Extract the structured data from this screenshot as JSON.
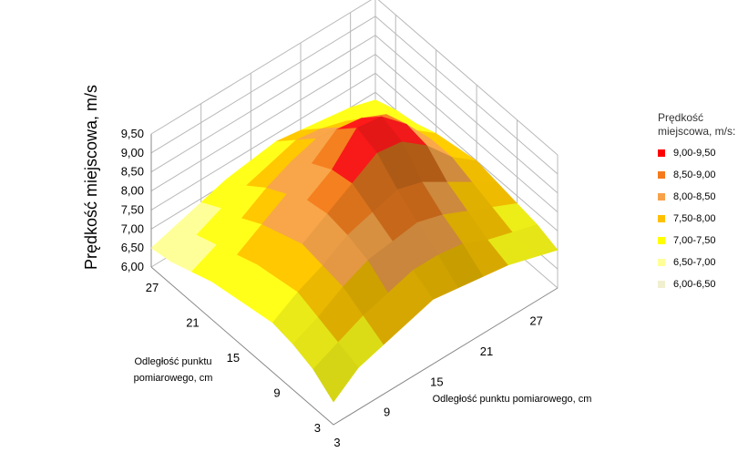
{
  "chart_data": {
    "type": "surface",
    "z_title": "Prędkość miejscowa, m/s",
    "x_title": "Odległość punktu pomiarowego, cm",
    "y_title": "Odległość punktu pomiarowego, cm",
    "x_ticks": [
      "3",
      "9",
      "15",
      "21",
      "27"
    ],
    "y_ticks": [
      "3",
      "9",
      "15",
      "21",
      "27"
    ],
    "z_ticks": [
      "6,00",
      "6,50",
      "7,00",
      "7,50",
      "8,00",
      "8,50",
      "9,00",
      "9,50"
    ],
    "zlim": [
      6.0,
      9.5
    ],
    "x": [
      3,
      6,
      9,
      12,
      15,
      18,
      21,
      24,
      27,
      30
    ],
    "y": [
      3,
      6,
      9,
      12,
      15,
      18,
      21,
      24,
      27,
      30
    ],
    "z": [
      [
        6.6,
        7.1,
        7.3,
        7.5,
        7.7,
        7.6,
        7.5,
        7.4,
        7.2,
        7.0
      ],
      [
        7.0,
        7.3,
        7.6,
        7.8,
        8.0,
        8.0,
        7.9,
        7.6,
        7.4,
        7.2
      ],
      [
        7.2,
        7.5,
        7.9,
        8.2,
        8.3,
        8.4,
        8.2,
        7.9,
        7.6,
        7.3
      ],
      [
        7.3,
        7.7,
        8.0,
        8.4,
        8.6,
        8.8,
        8.6,
        8.2,
        7.8,
        7.4
      ],
      [
        7.2,
        7.6,
        8.1,
        8.5,
        8.9,
        9.3,
        9.2,
        8.7,
        8.0,
        7.5
      ],
      [
        7.1,
        7.5,
        7.9,
        8.4,
        8.8,
        9.5,
        9.4,
        8.8,
        8.0,
        7.4
      ],
      [
        7.0,
        7.3,
        7.7,
        8.1,
        8.5,
        9.0,
        8.9,
        8.6,
        7.8,
        7.3
      ],
      [
        6.8,
        7.1,
        7.4,
        7.8,
        8.1,
        8.3,
        8.2,
        8.0,
        7.6,
        7.1
      ],
      [
        6.6,
        6.9,
        7.2,
        7.4,
        7.6,
        7.8,
        7.7,
        7.5,
        7.2,
        7.0
      ],
      [
        6.5,
        6.7,
        6.9,
        7.1,
        7.2,
        7.3,
        7.2,
        7.1,
        7.0,
        6.8
      ]
    ],
    "legend_title": "Prędkość miejscowa, m/s:",
    "legend": [
      {
        "label": "9,00-9,50",
        "color": "#ff0000"
      },
      {
        "label": "8,50-9,00",
        "color": "#f57a1c"
      },
      {
        "label": "8,00-8,50",
        "color": "#f7a24a"
      },
      {
        "label": "7,50-8,00",
        "color": "#ffc000"
      },
      {
        "label": "7,00-7,50",
        "color": "#ffff00"
      },
      {
        "label": "6,50-7,00",
        "color": "#ffff99"
      },
      {
        "label": "6,00-6,50",
        "color": "#f0f0d0"
      }
    ]
  }
}
